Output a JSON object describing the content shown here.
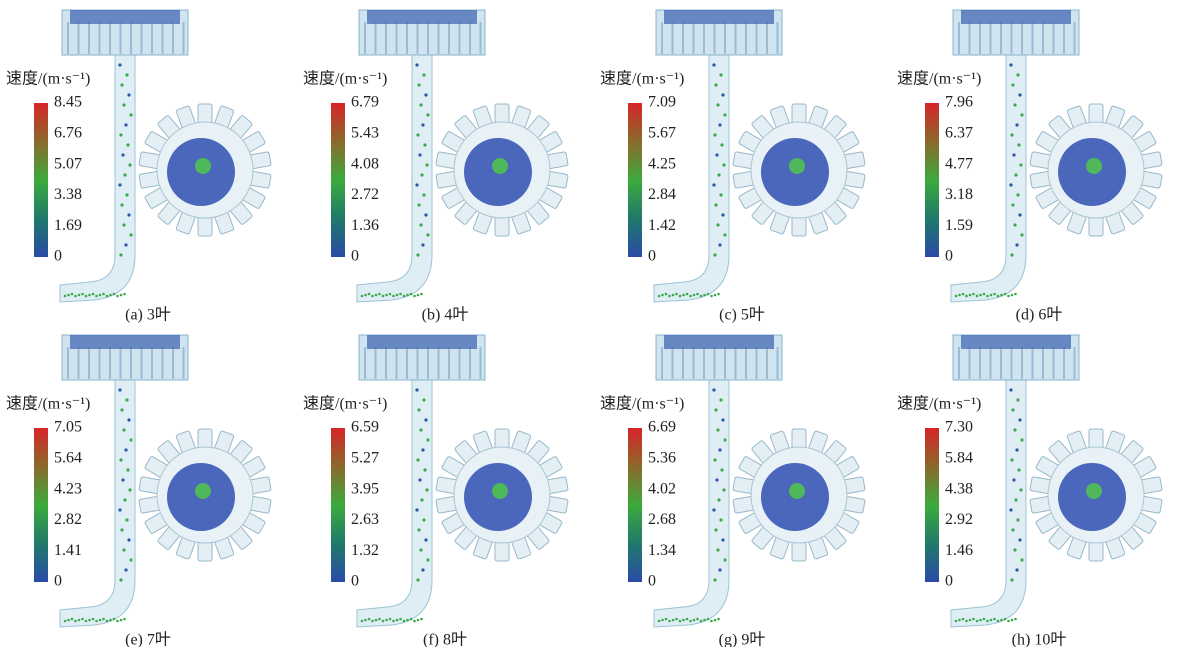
{
  "panels": [
    {
      "colorbar_title": "速度/(m·s⁻¹)",
      "ticks": [
        "8.45",
        "6.76",
        "5.07",
        "3.38",
        "1.69",
        "0"
      ],
      "caption": "(a) 3叶"
    },
    {
      "colorbar_title": "速度/(m·s⁻¹)",
      "ticks": [
        "6.79",
        "5.43",
        "4.08",
        "2.72",
        "1.36",
        "0"
      ],
      "caption": "(b) 4叶"
    },
    {
      "colorbar_title": "速度/(m·s⁻¹)",
      "ticks": [
        "7.09",
        "5.67",
        "4.25",
        "2.84",
        "1.42",
        "0"
      ],
      "caption": "(c) 5叶"
    },
    {
      "colorbar_title": "速度/(m·s⁻¹)",
      "ticks": [
        "7.96",
        "6.37",
        "4.77",
        "3.18",
        "1.59",
        "0"
      ],
      "caption": "(d) 6叶"
    },
    {
      "colorbar_title": "速度/(m·s⁻¹)",
      "ticks": [
        "7.05",
        "5.64",
        "4.23",
        "2.82",
        "1.41",
        "0"
      ],
      "caption": "(e) 7叶"
    },
    {
      "colorbar_title": "速度/(m·s⁻¹)",
      "ticks": [
        "6.59",
        "5.27",
        "3.95",
        "2.63",
        "1.32",
        "0"
      ],
      "caption": "(f) 8叶"
    },
    {
      "colorbar_title": "速度/(m·s⁻¹)",
      "ticks": [
        "6.69",
        "5.36",
        "4.02",
        "2.68",
        "1.34",
        "0"
      ],
      "caption": "(g) 9叶"
    },
    {
      "colorbar_title": "速度/(m·s⁻¹)",
      "ticks": [
        "7.30",
        "5.84",
        "4.38",
        "2.92",
        "1.46",
        "0"
      ],
      "caption": "(h) 10叶"
    }
  ]
}
